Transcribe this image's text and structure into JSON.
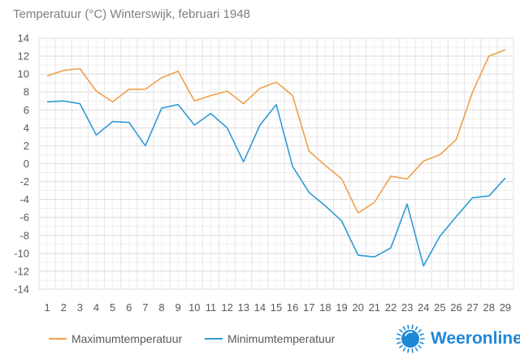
{
  "chart_data": {
    "type": "line",
    "title": "Temperatuur (°C)  Winterswijk, februari 1948",
    "xlabel": "",
    "ylabel": "",
    "x": [
      1,
      2,
      3,
      4,
      5,
      6,
      7,
      8,
      9,
      10,
      11,
      12,
      13,
      14,
      15,
      16,
      17,
      18,
      19,
      20,
      21,
      22,
      23,
      24,
      25,
      26,
      27,
      28,
      29
    ],
    "ylim": [
      -14,
      14
    ],
    "yticks": [
      -14,
      -12,
      -10,
      -8,
      -6,
      -4,
      -2,
      0,
      2,
      4,
      6,
      8,
      10,
      12,
      14
    ],
    "grid": true,
    "legend": "bottom-left",
    "series": [
      {
        "name": "Maximumtemperatuur",
        "color": "#f0a04b",
        "values": [
          9.8,
          10.4,
          10.6,
          8.1,
          6.9,
          8.3,
          8.3,
          9.6,
          10.3,
          7.0,
          7.6,
          8.1,
          6.7,
          8.4,
          9.1,
          7.6,
          1.4,
          -0.2,
          -1.7,
          -5.5,
          -4.3,
          -1.4,
          -1.7,
          0.3,
          1.0,
          2.7,
          8.0,
          12.0,
          12.7
        ]
      },
      {
        "name": "Minimumtemperatuur",
        "color": "#2e9bd6",
        "values": [
          6.9,
          7.0,
          6.7,
          3.2,
          4.7,
          4.6,
          2.0,
          6.2,
          6.6,
          4.3,
          5.6,
          4.0,
          0.2,
          4.3,
          6.6,
          -0.3,
          -3.2,
          -4.7,
          -6.4,
          -10.2,
          -10.4,
          -9.4,
          -4.5,
          -11.4,
          -8.1,
          -5.9,
          -3.8,
          -3.6,
          -1.6
        ]
      }
    ]
  },
  "brand": {
    "name": "Weeronline",
    "logo_color": "#1f88d6"
  }
}
